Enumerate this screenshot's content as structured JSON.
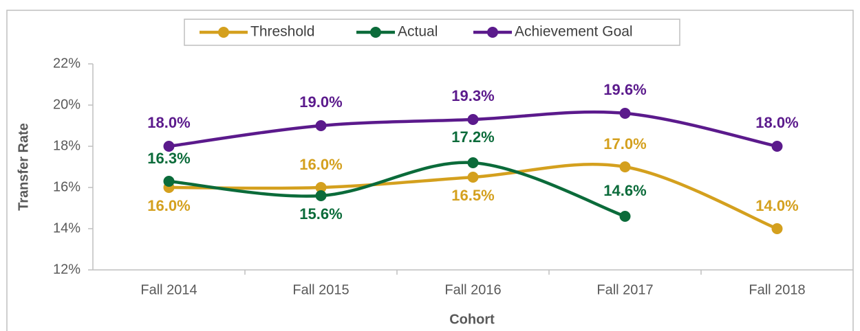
{
  "chart_data": {
    "type": "line",
    "categories": [
      "Fall 2014",
      "Fall 2015",
      "Fall 2016",
      "Fall 2017",
      "Fall 2018"
    ],
    "series": [
      {
        "name": "Threshold",
        "color": "#d4a01e",
        "values": [
          16.0,
          16.0,
          16.5,
          17.0,
          14.0
        ],
        "value_labels": [
          "16.0%",
          "16.0%",
          "16.5%",
          "17.0%",
          "14.0%"
        ]
      },
      {
        "name": "Actual",
        "color": "#0b6b3a",
        "values": [
          16.3,
          15.6,
          17.2,
          14.6,
          null
        ],
        "value_labels": [
          "16.3%",
          "15.6%",
          "17.2%",
          "14.6%",
          null
        ]
      },
      {
        "name": "Achievement Goal",
        "color": "#5b1a8c",
        "values": [
          18.0,
          19.0,
          19.3,
          19.6,
          18.0
        ],
        "value_labels": [
          "18.0%",
          "19.0%",
          "19.3%",
          "19.6%",
          "18.0%"
        ]
      }
    ],
    "ylim": [
      12,
      22
    ],
    "yticks": [
      {
        "value": 12,
        "label": "12%"
      },
      {
        "value": 14,
        "label": "14%"
      },
      {
        "value": 16,
        "label": "16%"
      },
      {
        "value": 18,
        "label": "18%"
      },
      {
        "value": 20,
        "label": "20%"
      },
      {
        "value": 22,
        "label": "22%"
      }
    ],
    "ylabel": "Transfer Rate",
    "xlabel": "Cohort",
    "legend": "top"
  }
}
